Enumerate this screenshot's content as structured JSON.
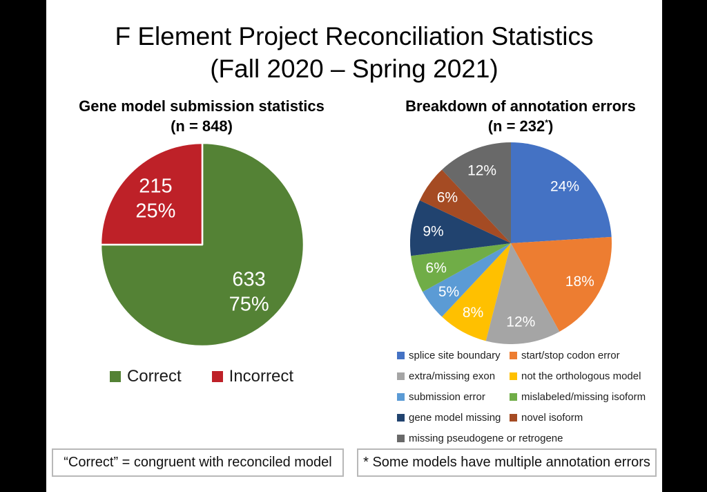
{
  "slide": {
    "title_line1": "F Element Project Reconciliation Statistics",
    "title_line2": "(Fall 2020 – Spring 2021)",
    "footnotes": {
      "left": "“Correct” = congruent with reconciled model",
      "right": "* Some models have multiple annotation errors"
    }
  },
  "chart_data": [
    {
      "type": "pie",
      "title": "Gene model submission statistics",
      "subtitle": "(n = 848)",
      "n": 848,
      "legend_position": "bottom",
      "slices": [
        {
          "label": "Correct",
          "value": 633,
          "percent": 75,
          "color": "#548235",
          "display_label": [
            "633",
            "75%"
          ]
        },
        {
          "label": "Incorrect",
          "value": 215,
          "percent": 25,
          "color": "#BE2128",
          "display_label": [
            "215",
            "25%"
          ]
        }
      ]
    },
    {
      "type": "pie",
      "title": "Breakdown of annotation errors",
      "subtitle_prefix": "(n = 232",
      "subtitle_sup": "*",
      "subtitle_suffix": ")",
      "n": 232,
      "legend_position": "bottom",
      "slices": [
        {
          "label": "splice site boundary",
          "percent": 24,
          "color": "#4472C4",
          "display_label": [
            "24%"
          ]
        },
        {
          "label": "start/stop codon error",
          "percent": 18,
          "color": "#ED7D31",
          "display_label": [
            "18%"
          ]
        },
        {
          "label": "extra/missing exon",
          "percent": 12,
          "color": "#A5A5A5",
          "display_label": [
            "12%"
          ]
        },
        {
          "label": "not the orthologous model",
          "percent": 8,
          "color": "#FFC000",
          "display_label": [
            "8%"
          ]
        },
        {
          "label": "submission error",
          "percent": 5,
          "color": "#5B9BD5",
          "display_label": [
            "5%"
          ]
        },
        {
          "label": "mislabeled/missing isoform",
          "percent": 6,
          "color": "#70AD47",
          "display_label": [
            "6%"
          ]
        },
        {
          "label": "gene model missing",
          "percent": 9,
          "color": "#21436F",
          "display_label": [
            "9%"
          ]
        },
        {
          "label": "novel isoform",
          "percent": 6,
          "color": "#A54B23",
          "display_label": [
            "6%"
          ]
        },
        {
          "label": "missing pseudogene or retrogene",
          "percent": 12,
          "color": "#696969",
          "display_label": [
            "12%"
          ]
        }
      ]
    }
  ]
}
